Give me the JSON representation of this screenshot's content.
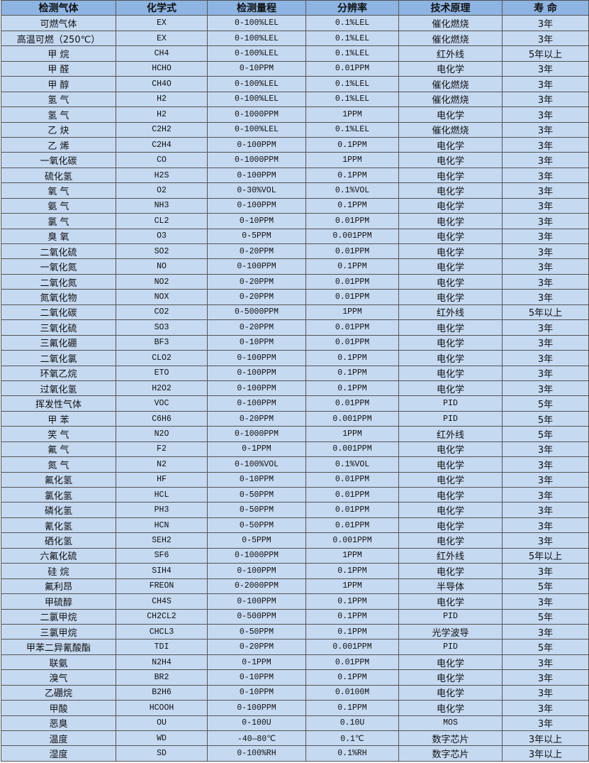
{
  "colors": {
    "header_bg": "#8db4e2",
    "row_bg": "#c5d9f1",
    "border": "#555555"
  },
  "headers": [
    "检测气体",
    "化学式",
    "检测量程",
    "分辨率",
    "技术原理",
    "寿 命"
  ],
  "rows": [
    [
      "可燃气体",
      "EX",
      "0-100%LEL",
      "0.1%LEL",
      "催化燃烧",
      "3年"
    ],
    [
      "高温可燃（250℃）",
      "EX",
      "0-100%LEL",
      "0.1%LEL",
      "催化燃烧",
      "3年"
    ],
    [
      "甲 烷",
      "CH4",
      "0-100%LEL",
      "0.1%LEL",
      "红外线",
      "5年以上"
    ],
    [
      "甲 醛",
      "HCHO",
      "0-10PPM",
      "0.01PPM",
      "电化学",
      "3年"
    ],
    [
      "甲 醇",
      "CH4O",
      "0-100%LEL",
      "0.1%LEL",
      "催化燃烧",
      "3年"
    ],
    [
      "氢 气",
      "H2",
      "0-100%LEL",
      "0.1%LEL",
      "催化燃烧",
      "3年"
    ],
    [
      "氢 气",
      "H2",
      "0-1000PPM",
      "1PPM",
      "电化学",
      "3年"
    ],
    [
      "乙 炔",
      "C2H2",
      "0-100%LEL",
      "0.1%LEL",
      "催化燃烧",
      "3年"
    ],
    [
      "乙 烯",
      "C2H4",
      "0-100PPM",
      "0.1PPM",
      "电化学",
      "3年"
    ],
    [
      "一氧化碳",
      "CO",
      "0-1000PPM",
      "1PPM",
      "电化学",
      "3年"
    ],
    [
      "硫化氢",
      "H2S",
      "0-100PPM",
      "0.1PPM",
      "电化学",
      "3年"
    ],
    [
      "氧 气",
      "O2",
      "0-30%VOL",
      "0.1%VOL",
      "电化学",
      "3年"
    ],
    [
      "氨 气",
      "NH3",
      "0-100PPM",
      "0.1PPM",
      "电化学",
      "3年"
    ],
    [
      "氯 气",
      "CL2",
      "0-10PPM",
      "0.01PPM",
      "电化学",
      "3年"
    ],
    [
      "臭 氧",
      "O3",
      "0-5PPM",
      "0.001PPM",
      "电化学",
      "3年"
    ],
    [
      "二氧化硫",
      "SO2",
      "0-20PPM",
      "0.01PPM",
      "电化学",
      "3年"
    ],
    [
      "一氧化氮",
      "NO",
      "0-100PPM",
      "0.1PPM",
      "电化学",
      "3年"
    ],
    [
      "二氧化氮",
      "NO2",
      "0-20PPM",
      "0.01PPM",
      "电化学",
      "3年"
    ],
    [
      "氮氧化物",
      "NOX",
      "0-20PPM",
      "0.01PPM",
      "电化学",
      "3年"
    ],
    [
      "二氧化碳",
      "CO2",
      "0-5000PPM",
      "1PPM",
      "红外线",
      "5年以上"
    ],
    [
      "三氧化硫",
      "SO3",
      "0-20PPM",
      "0.01PPM",
      "电化学",
      "3年"
    ],
    [
      "三氟化硼",
      "BF3",
      "0-10PPM",
      "0.01PPM",
      "电化学",
      "3年"
    ],
    [
      "二氧化氯",
      "CLO2",
      "0-100PPM",
      "0.1PPM",
      "电化学",
      "3年"
    ],
    [
      "环氧乙烷",
      "ETO",
      "0-100PPM",
      "0.1PPM",
      "电化学",
      "3年"
    ],
    [
      "过氧化氢",
      "H2O2",
      "0-100PPM",
      "0.1PPM",
      "电化学",
      "3年"
    ],
    [
      "挥发性气体",
      "VOC",
      "0-100PPM",
      "0.01PPM",
      "PID",
      "5年"
    ],
    [
      "甲 苯",
      "C6H6",
      "0-20PPM",
      "0.001PPM",
      "PID",
      "5年"
    ],
    [
      "笑 气",
      "N2O",
      "0-1000PPM",
      "1PPM",
      "红外线",
      "5年"
    ],
    [
      "氟 气",
      "F2",
      "0-1PPM",
      "0.001PPM",
      "电化学",
      "3年"
    ],
    [
      "氮 气",
      "N2",
      "0-100%VOL",
      "0.1%VOL",
      "电化学",
      "3年"
    ],
    [
      "氟化氢",
      "HF",
      "0-10PPM",
      "0.01PPM",
      "电化学",
      "3年"
    ],
    [
      "氯化氢",
      "HCL",
      "0-50PPM",
      "0.01PPM",
      "电化学",
      "3年"
    ],
    [
      "磷化氢",
      "PH3",
      "0-50PPM",
      "0.01PPM",
      "电化学",
      "3年"
    ],
    [
      "氰化氢",
      "HCN",
      "0-50PPM",
      "0.01PPM",
      "电化学",
      "3年"
    ],
    [
      "硒化氢",
      "SEH2",
      "0-5PPM",
      "0.001PPM",
      "电化学",
      "3年"
    ],
    [
      "六氟化硫",
      "SF6",
      "0-1000PPM",
      "1PPM",
      "红外线",
      "5年以上"
    ],
    [
      "硅 烷",
      "SIH4",
      "0-100PPM",
      "0.1PPM",
      "电化学",
      "3年"
    ],
    [
      "氟利昂",
      "FREON",
      "0-2000PPM",
      "1PPM",
      "半导体",
      "5年"
    ],
    [
      "甲硫醇",
      "CH4S",
      "0-100PPM",
      "0.1PPM",
      "电化学",
      "3年"
    ],
    [
      "二氯甲烷",
      "CH2CL2",
      "0-500PPM",
      "0.1PPM",
      "PID",
      "5年"
    ],
    [
      "三氯甲烷",
      "CHCL3",
      "0-50PPM",
      "0.1PPM",
      "光学波导",
      "3年"
    ],
    [
      "甲苯二异氰酸酯",
      "TDI",
      "0-20PPM",
      "0.001PPM",
      "PID",
      "5年"
    ],
    [
      "联氨",
      "N2H4",
      "0-1PPM",
      "0.01PPM",
      "电化学",
      "3年"
    ],
    [
      "溴气",
      "BR2",
      "0-10PPM",
      "0.1PPM",
      "电化学",
      "3年"
    ],
    [
      "乙硼烷",
      "B2H6",
      "0-10PPM",
      "0.0100M",
      "电化学",
      "3年"
    ],
    [
      "甲酸",
      "HCOOH",
      "0-100PPM",
      "0.1PPM",
      "电化学",
      "3年"
    ],
    [
      "恶臭",
      "OU",
      "0-100U",
      "0.10U",
      "MOS",
      "3年"
    ],
    [
      "温度",
      "WD",
      "-40—80℃",
      "0.1℃",
      "数字芯片",
      "3年以上"
    ],
    [
      "湿度",
      "SD",
      "0-100%RH",
      "0.1%RH",
      "数字芯片",
      "3年以上"
    ]
  ]
}
